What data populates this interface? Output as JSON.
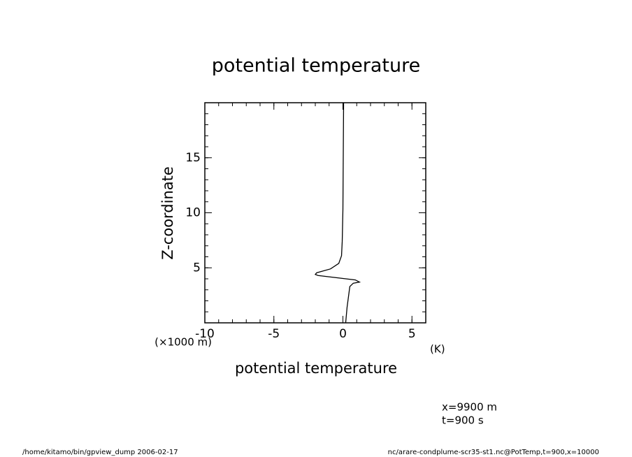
{
  "chart_data": {
    "type": "line",
    "title": "potential temperature",
    "x_label": "potential temperature",
    "y_label": "Z-coordinate",
    "x_unit": "(K)",
    "y_unit": "(×1000 m)",
    "annotations": [
      "x=9900 m",
      "t=900 s"
    ],
    "footer_left": "/home/kitamo/bin/gpview_dump  2006-02-17",
    "footer_right": "nc/arare-condplume-scr35-st1.nc@PotTemp,t=900,x=10000",
    "xlim": [
      -10,
      6
    ],
    "xticks": [
      -10,
      -5,
      0,
      5
    ],
    "ylim": [
      0,
      20
    ],
    "yticks": [
      5,
      10,
      15
    ],
    "series": [
      {
        "color": "#000000",
        "x": [
          0.2,
          0.3,
          0.5,
          0.75,
          1.2,
          0.9,
          -1.8,
          -2.0,
          -1.9,
          -0.9,
          -0.3,
          -0.1,
          -0.05,
          0,
          0.05
        ],
        "values": [
          0,
          1.4,
          3.3,
          3.6,
          3.7,
          3.9,
          4.3,
          4.4,
          4.55,
          4.9,
          5.4,
          6.1,
          7.4,
          10.3,
          20
        ]
      }
    ]
  }
}
